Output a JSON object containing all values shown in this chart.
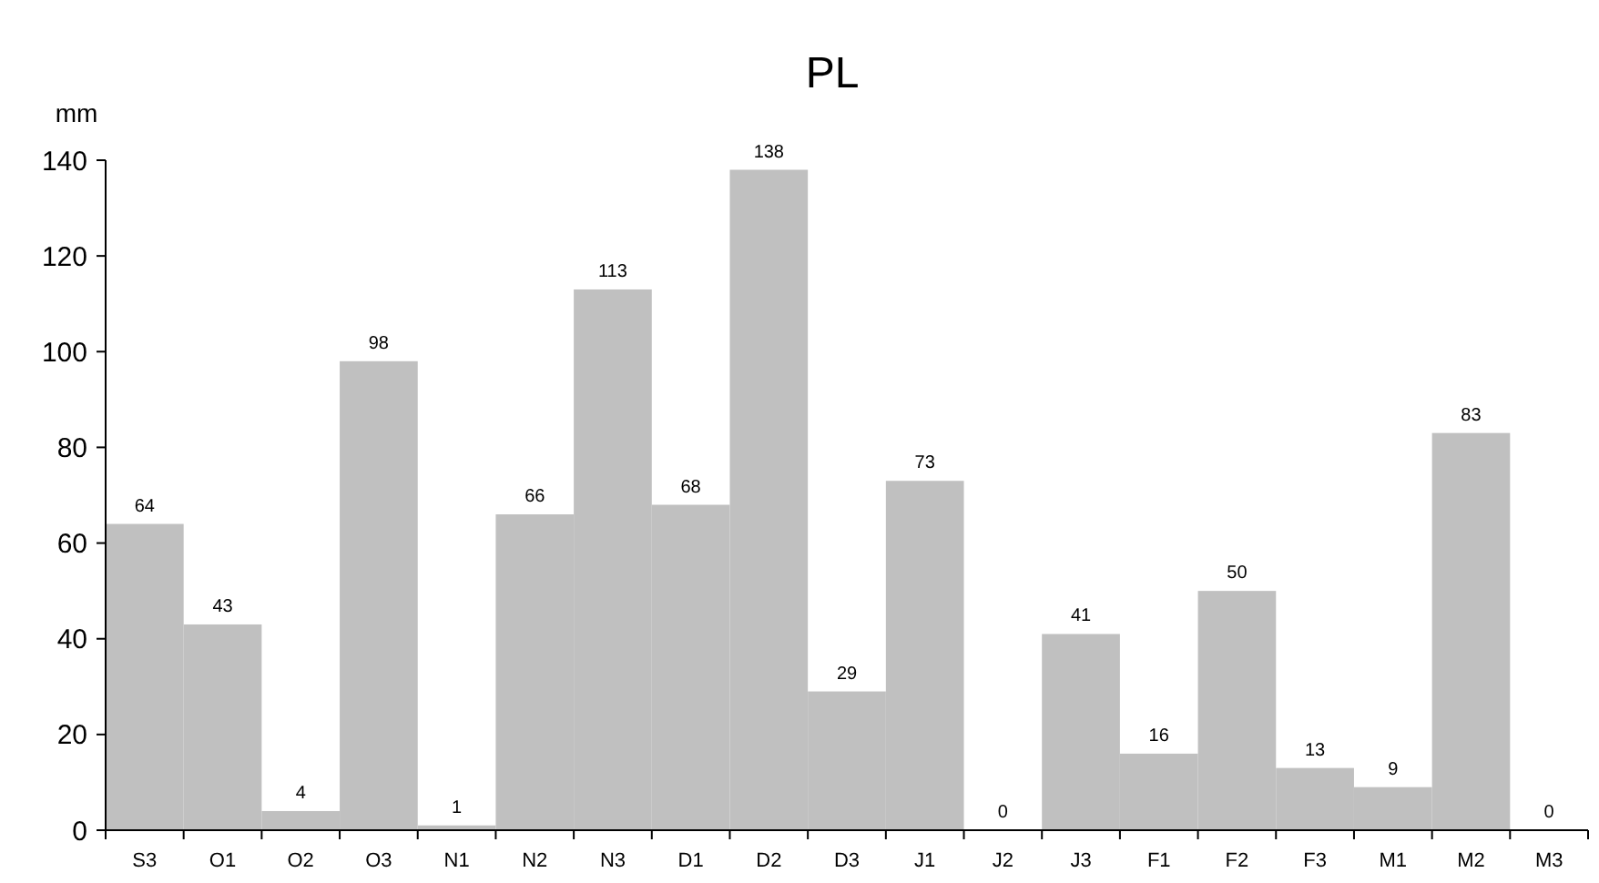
{
  "chart_data": {
    "type": "bar",
    "title": "PL",
    "ylabel": "mm",
    "categories": [
      "S3",
      "O1",
      "O2",
      "O3",
      "N1",
      "N2",
      "N3",
      "D1",
      "D2",
      "D3",
      "J1",
      "J2",
      "J3",
      "F1",
      "F2",
      "F3",
      "M1",
      "M2",
      "M3"
    ],
    "values": [
      64,
      43,
      4,
      98,
      1,
      66,
      113,
      68,
      138,
      29,
      73,
      0,
      41,
      16,
      50,
      13,
      9,
      83,
      0
    ],
    "color": "#c0c0c0",
    "ylim": [
      0,
      140
    ],
    "yticks": [
      0,
      20,
      40,
      60,
      80,
      100,
      120,
      140
    ],
    "data_labels": true
  }
}
